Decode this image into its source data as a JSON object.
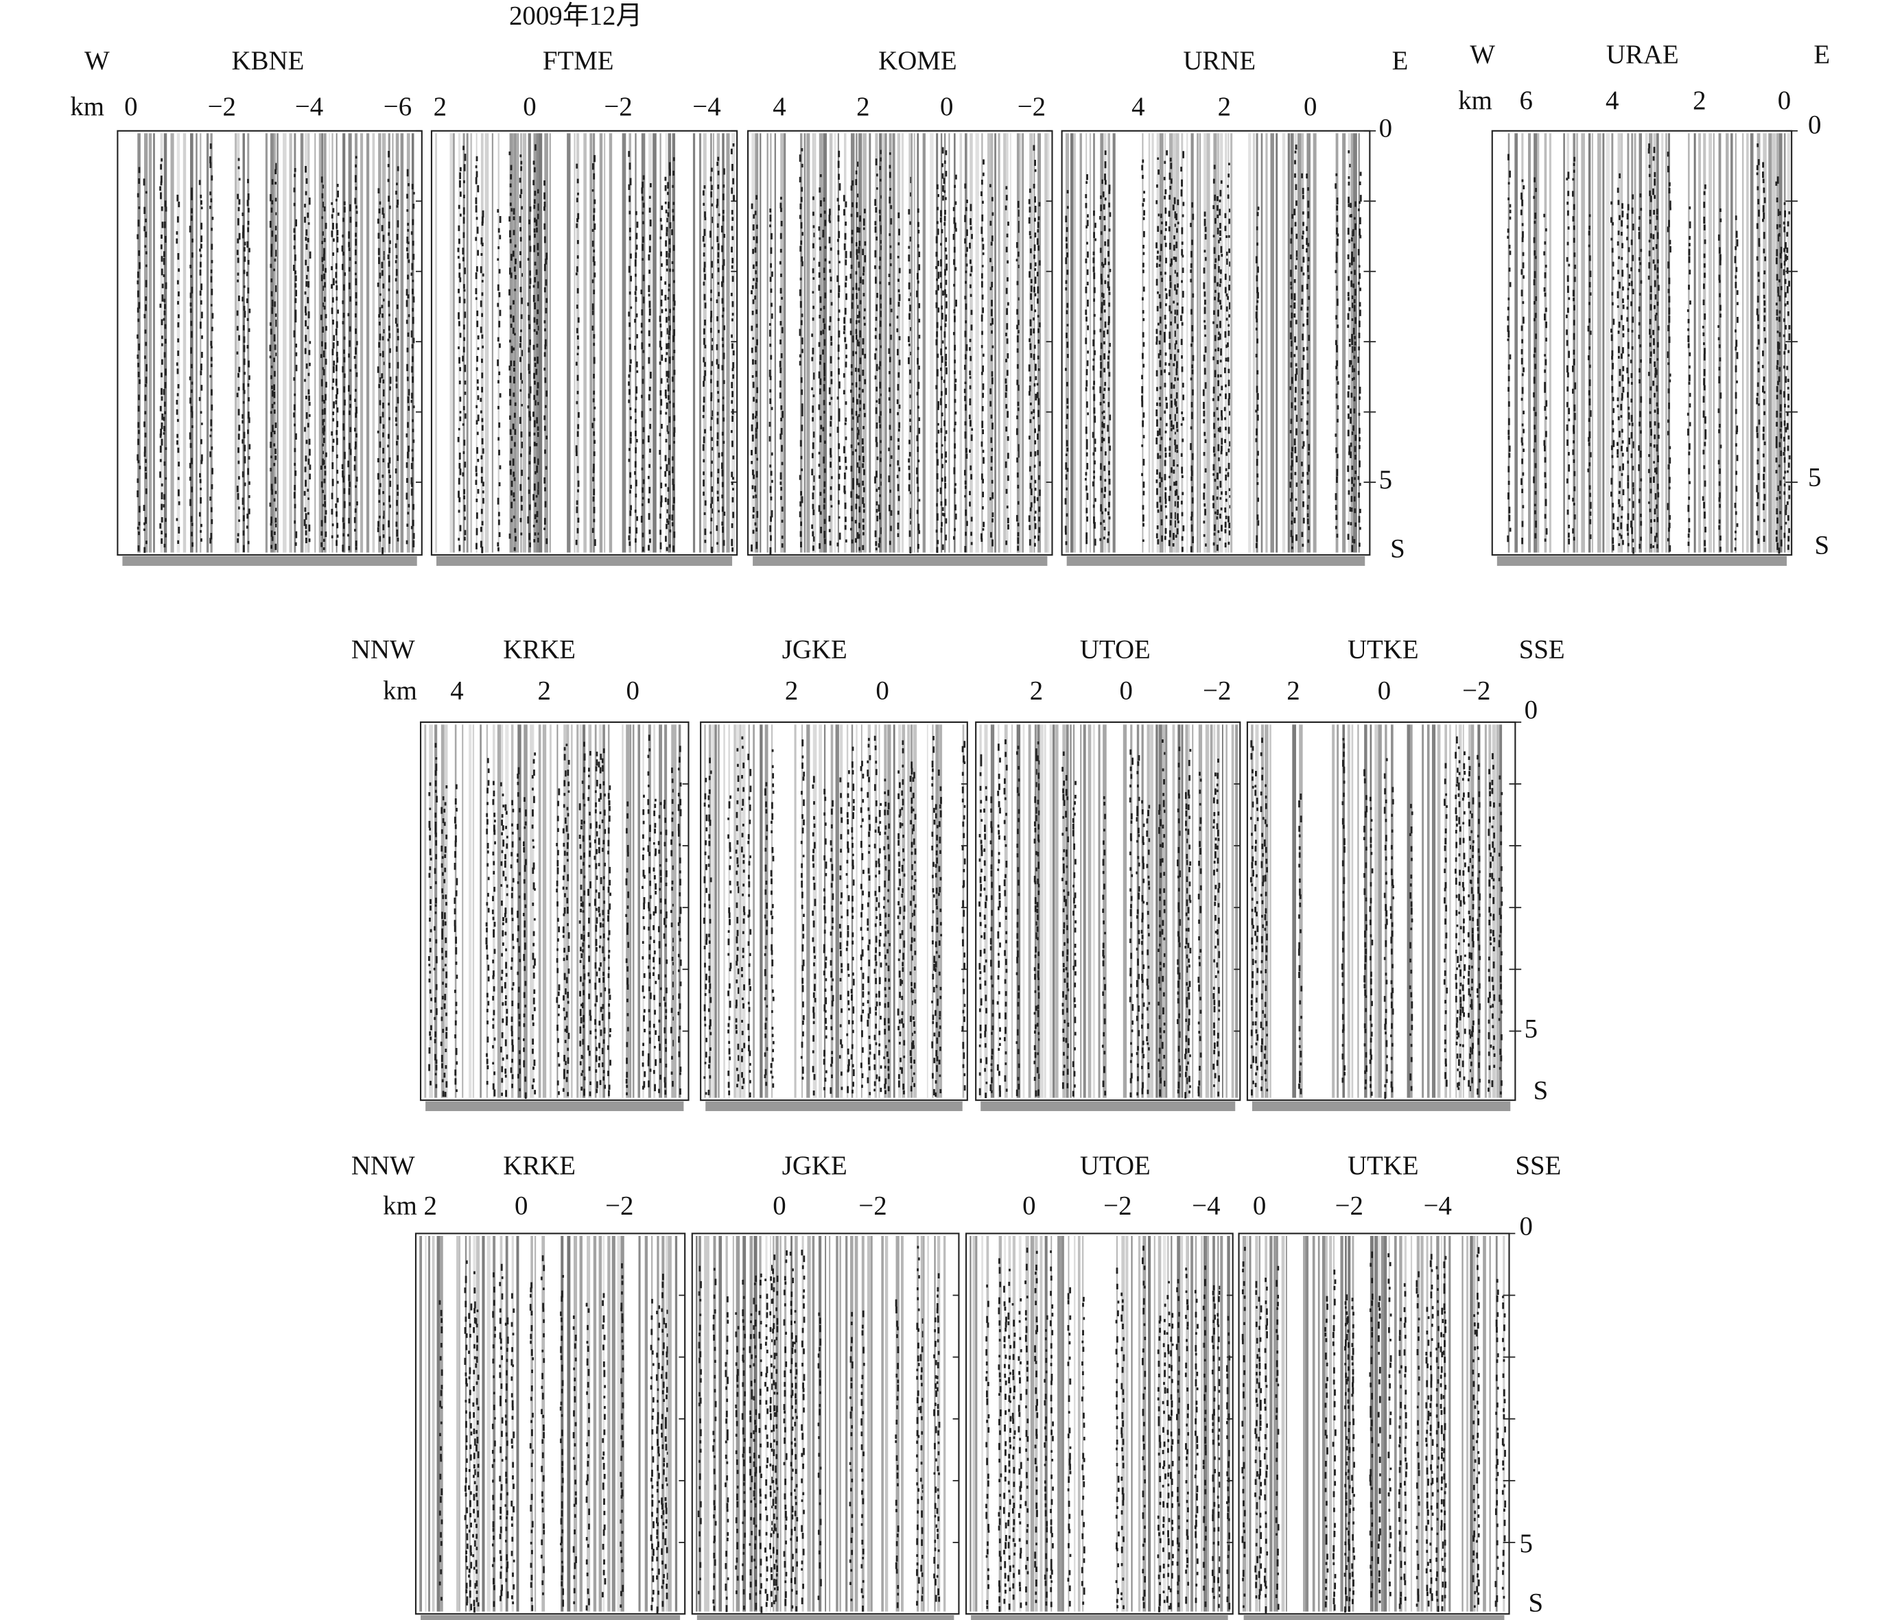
{
  "title": "2009年12月",
  "groups": [
    {
      "left": "W",
      "right": "E",
      "unit": "km",
      "time_ticks": [
        "0",
        "5"
      ],
      "time_unit": "S",
      "panels": [
        {
          "name": "KBNE",
          "ticks": [
            "0",
            "−2",
            "−4",
            "−6"
          ]
        },
        {
          "name": "FTME",
          "ticks": [
            "2",
            "0",
            "−2",
            "−4"
          ]
        },
        {
          "name": "KOME",
          "ticks": [
            "4",
            "2",
            "0",
            "−2"
          ]
        },
        {
          "name": "URNE",
          "ticks": [
            "4",
            "2",
            "0"
          ]
        }
      ]
    },
    {
      "left": "W",
      "right": "E",
      "unit": "km",
      "time_ticks": [
        "0",
        "5"
      ],
      "time_unit": "S",
      "panels": [
        {
          "name": "URAE",
          "ticks": [
            "6",
            "4",
            "2",
            "0"
          ]
        }
      ]
    },
    {
      "left": "NNW",
      "right": "SSE",
      "unit": "km",
      "time_ticks": [
        "0",
        "5"
      ],
      "time_unit": "S",
      "panels": [
        {
          "name": "KRKE",
          "ticks": [
            "4",
            "2",
            "0"
          ]
        },
        {
          "name": "JGKE",
          "ticks": [
            "2",
            "0"
          ]
        },
        {
          "name": "UTOE",
          "ticks": [
            "2",
            "0",
            "−2"
          ]
        },
        {
          "name": "UTKE",
          "ticks": [
            "2",
            "0",
            "−2"
          ]
        }
      ]
    },
    {
      "left": "NNW",
      "right": "SSE",
      "unit": "km",
      "time_ticks": [
        "0",
        "5"
      ],
      "time_unit": "S",
      "panels": [
        {
          "name": "KRKE",
          "ticks": [
            "2",
            "0",
            "−2"
          ]
        },
        {
          "name": "JGKE",
          "ticks": [
            "0",
            "−2"
          ]
        },
        {
          "name": "UTOE",
          "ticks": [
            "0",
            "−2",
            "−4"
          ]
        },
        {
          "name": "UTKE",
          "ticks": [
            "0",
            "−2",
            "−4"
          ]
        }
      ]
    }
  ]
}
